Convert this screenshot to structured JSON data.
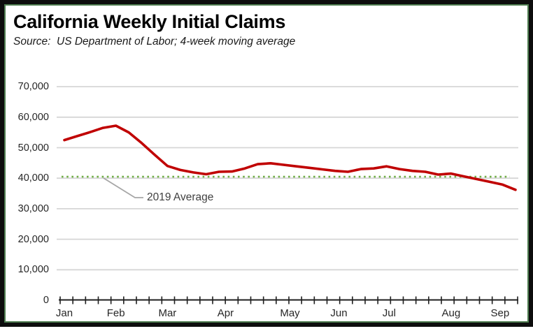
{
  "header": {
    "title": "California Weekly Initial Claims",
    "source_note": "Source:  US Department of Labor; 4-week moving average"
  },
  "chart_data": {
    "type": "line",
    "title": "California Weekly Initial Claims",
    "subtitle": "Source: US Department of Labor; 4-week moving average",
    "unit": "claims per week (4-week moving average)",
    "series": [
      {
        "name": "CA weekly initial claims, 4-week moving average",
        "color": "#c00000",
        "x_unit": "week",
        "values": [
          52500,
          53800,
          55100,
          56500,
          57200,
          55000,
          51500,
          47700,
          44000,
          42700,
          41900,
          41300,
          42100,
          42200,
          43200,
          44600,
          44900,
          44400,
          43900,
          43400,
          42900,
          42400,
          42100,
          43000,
          43200,
          43900,
          43000,
          42400,
          42100,
          41200,
          41500,
          40600,
          39700,
          38800,
          37900,
          36200
        ]
      }
    ],
    "average_line": {
      "label": "2019 Average",
      "value": 40500,
      "color": "#70ad47",
      "style": "dotted"
    },
    "x_axis": {
      "tick_interval": "weekly",
      "months": [
        {
          "label": "Jan",
          "week": 0
        },
        {
          "label": "Feb",
          "week": 4
        },
        {
          "label": "Mar",
          "week": 8
        },
        {
          "label": "Apr",
          "week": 12.5
        },
        {
          "label": "May",
          "week": 17.5
        },
        {
          "label": "Jun",
          "week": 21.3
        },
        {
          "label": "Jul",
          "week": 25.2
        },
        {
          "label": "Aug",
          "week": 30
        },
        {
          "label": "Sep",
          "week": 33.8
        }
      ]
    },
    "y_axis": {
      "ticks": [
        0,
        10000,
        20000,
        30000,
        40000,
        50000,
        60000,
        70000
      ],
      "tick_labels": [
        "0",
        "10,000",
        "20,000",
        "30,000",
        "40,000",
        "50,000",
        "60,000",
        "70,000"
      ],
      "range": [
        0,
        75000
      ]
    },
    "grid": true,
    "legend": "none",
    "colors": {
      "line": "#c00000",
      "average": "#70ad47",
      "gridline": "#d6d6d6",
      "axis": "#1f1f1f",
      "leader": "#a6a6a6",
      "frame": "#0d0d0d",
      "frame_accent": "#4e7c50"
    }
  }
}
